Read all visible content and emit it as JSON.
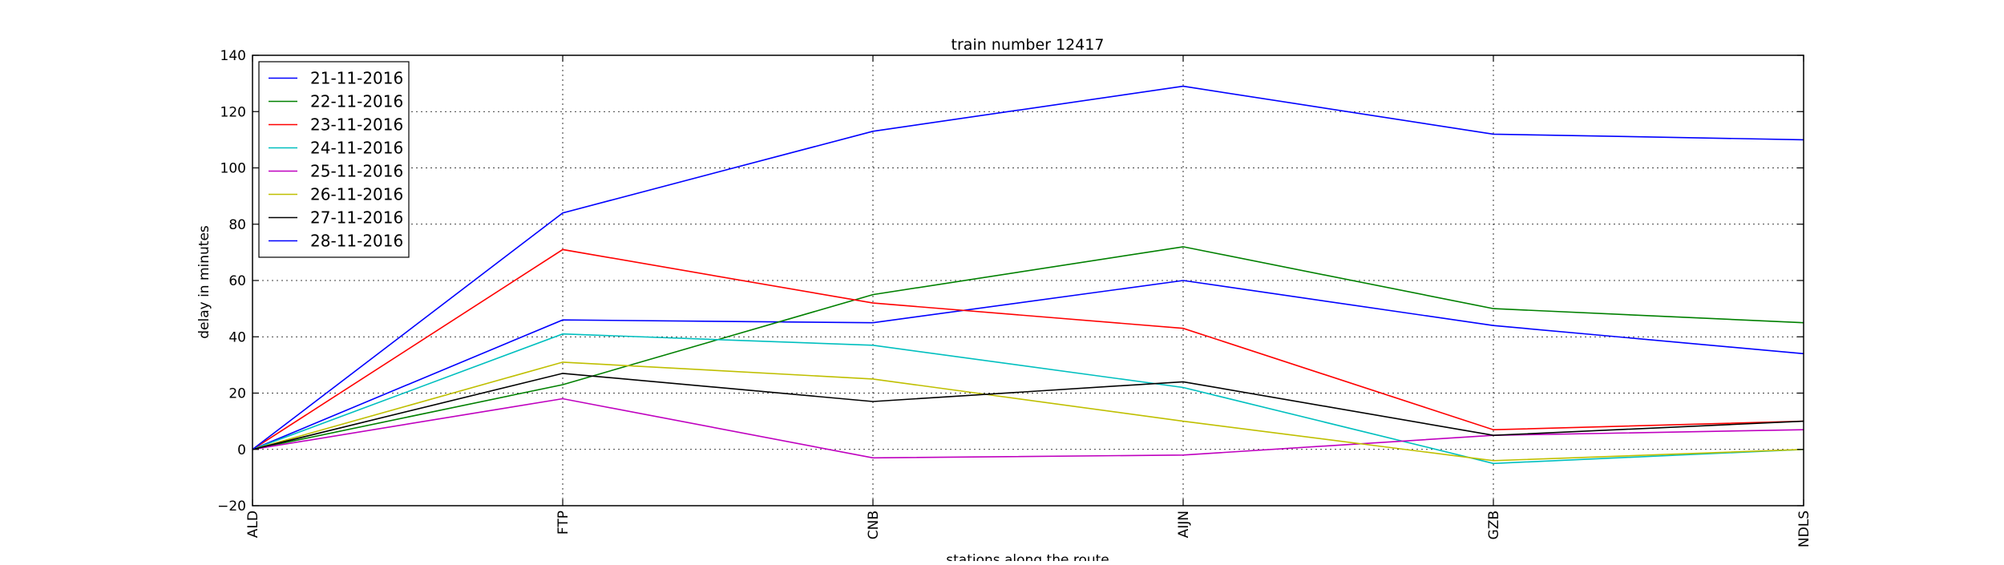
{
  "chart_data": {
    "type": "line",
    "title": "train number 12417",
    "xlabel": "stations along the route",
    "ylabel": "delay in minutes",
    "categories": [
      "ALD",
      "FTP",
      "CNB",
      "AIJN",
      "GZB",
      "NDLS"
    ],
    "ylim": [
      -20,
      140
    ],
    "yticks": [
      -20,
      0,
      20,
      40,
      60,
      80,
      100,
      120,
      140
    ],
    "grid": true,
    "legend_position": "top-left",
    "series": [
      {
        "name": "21-11-2016",
        "color": "#0000ff",
        "values": [
          0,
          46,
          45,
          60,
          44,
          34
        ]
      },
      {
        "name": "22-11-2016",
        "color": "#008000",
        "values": [
          0,
          23,
          55,
          72,
          50,
          45
        ]
      },
      {
        "name": "23-11-2016",
        "color": "#ff0000",
        "values": [
          0,
          71,
          52,
          43,
          7,
          10
        ]
      },
      {
        "name": "24-11-2016",
        "color": "#00bfbf",
        "values": [
          0,
          41,
          37,
          22,
          -5,
          0
        ]
      },
      {
        "name": "25-11-2016",
        "color": "#bf00bf",
        "values": [
          0,
          18,
          -3,
          -2,
          5,
          7
        ]
      },
      {
        "name": "26-11-2016",
        "color": "#bfbf00",
        "values": [
          0,
          31,
          25,
          10,
          -4,
          0
        ]
      },
      {
        "name": "27-11-2016",
        "color": "#000000",
        "values": [
          0,
          27,
          17,
          24,
          5,
          10
        ]
      },
      {
        "name": "28-11-2016",
        "color": "#0000ff",
        "values": [
          0,
          84,
          113,
          129,
          112,
          110
        ]
      }
    ]
  }
}
